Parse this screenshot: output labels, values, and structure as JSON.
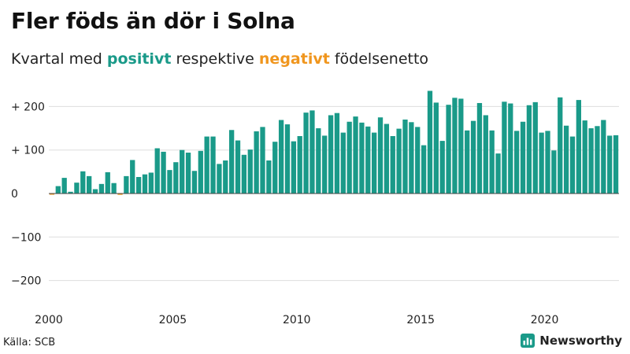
{
  "title": "Fler föds än dör i Solna",
  "subtitle": {
    "prefix": "Kvartal med ",
    "positive_word": "positivt",
    "middle": " respektive ",
    "negative_word": "negativt",
    "suffix": " födelsenetto"
  },
  "colors": {
    "positive": "#1a9a89",
    "negative": "#f0961e",
    "gridline": "#dddddd",
    "zero_line": "#444444",
    "brand": "#1a9a89"
  },
  "source": "Källa: SCB",
  "brand": {
    "label": "Newsworthy",
    "icon": "newsworthy-chart-icon"
  },
  "chart_data": {
    "type": "bar",
    "title": "Fler föds än dör i Solna",
    "subtitle": "Kvartal med positivt respektive negativt födelsenetto",
    "xlabel": "",
    "ylabel": "",
    "x_ticks": [
      "2000",
      "2005",
      "2010",
      "2015",
      "2020"
    ],
    "y_ticks": [
      {
        "value": 200,
        "label": "+ 200"
      },
      {
        "value": 100,
        "label": "+ 100"
      },
      {
        "value": 0,
        "label": "0"
      },
      {
        "value": -100,
        "label": "−100"
      },
      {
        "value": -200,
        "label": "−200"
      }
    ],
    "ylim": [
      -225,
      225
    ],
    "grid": true,
    "start_year": 2000,
    "values": [
      -2,
      17,
      36,
      4,
      25,
      51,
      40,
      10,
      22,
      49,
      24,
      -3,
      40,
      77,
      38,
      44,
      48,
      104,
      96,
      54,
      72,
      100,
      94,
      52,
      98,
      131,
      131,
      68,
      76,
      146,
      122,
      89,
      101,
      143,
      153,
      76,
      119,
      169,
      159,
      120,
      132,
      186,
      191,
      150,
      133,
      180,
      185,
      140,
      165,
      177,
      163,
      154,
      140,
      175,
      160,
      132,
      149,
      170,
      164,
      153,
      111,
      236,
      209,
      121,
      204,
      220,
      218,
      145,
      167,
      208,
      180,
      145,
      92,
      211,
      207,
      144,
      165,
      203,
      210,
      140,
      144,
      99,
      221,
      156,
      131,
      215,
      168,
      150,
      155,
      169,
      133,
      134
    ]
  }
}
